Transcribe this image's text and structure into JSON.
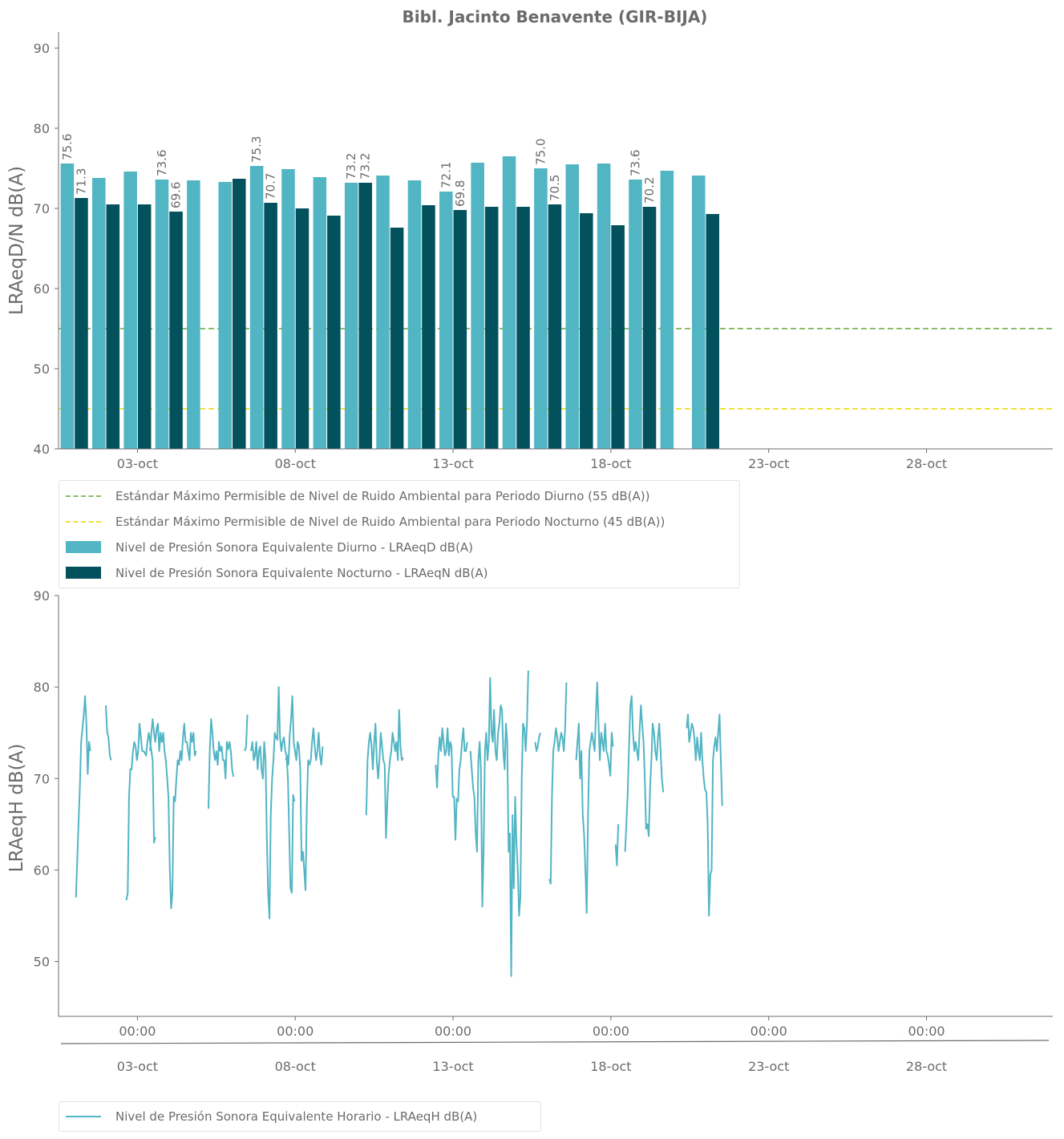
{
  "title": "Bibl. Jacinto Benavente (GIR-BIJA)",
  "colors": {
    "diurno": "#52b5c4",
    "nocturno": "#02515c",
    "limit_day": "#8cbd6b",
    "limit_night": "#f2e13a",
    "axis": "#6b6b6b"
  },
  "chart_data": [
    {
      "type": "bar",
      "ylabel": "LRAeqD/N dB(A)",
      "ylim": [
        40,
        92
      ],
      "yticks": [
        40,
        50,
        60,
        70,
        80,
        90
      ],
      "xlim_day": [
        0.5,
        32
      ],
      "xticks": [
        {
          "day": 3,
          "label": "03-oct"
        },
        {
          "day": 8,
          "label": "08-oct"
        },
        {
          "day": 13,
          "label": "13-oct"
        },
        {
          "day": 18,
          "label": "18-oct"
        },
        {
          "day": 23,
          "label": "23-oct"
        },
        {
          "day": 28,
          "label": "28-oct"
        }
      ],
      "days": [
        1,
        2,
        3,
        4,
        5,
        6,
        7,
        8,
        9,
        10,
        11,
        12,
        13,
        14,
        15,
        16,
        17,
        18,
        19,
        20,
        21
      ],
      "series": [
        {
          "name": "Nivel de Presión Sonora Equivalente Diurno - LRAeqD dB(A)",
          "values": [
            75.6,
            73.8,
            74.6,
            73.6,
            73.5,
            73.3,
            75.3,
            74.9,
            73.9,
            73.2,
            74.1,
            73.5,
            72.1,
            75.7,
            76.5,
            75.0,
            75.5,
            75.6,
            73.6,
            74.7,
            74.1
          ]
        },
        {
          "name": "Nivel de Presión Sonora Equivalente Nocturno - LRAeqN dB(A)",
          "values": [
            71.3,
            70.5,
            70.5,
            69.6,
            null,
            73.7,
            70.7,
            70.0,
            69.1,
            73.2,
            67.6,
            70.4,
            69.8,
            70.2,
            70.2,
            70.5,
            69.4,
            67.9,
            70.2,
            null,
            69.3
          ]
        }
      ],
      "labeled_days": [
        1,
        4,
        7,
        10,
        13,
        16,
        19
      ],
      "reference_lines": [
        {
          "name": "Estándar Máximo Permisible de Nivel de Ruido Ambiental para Periodo Diurno (55 dB(A))",
          "value": 55
        },
        {
          "name": "Estándar Máximo Permisible de Nivel de Ruido Ambiental para Periodo Nocturno (45 dB(A))",
          "value": 45
        }
      ]
    },
    {
      "type": "line",
      "ylabel": "LRAeqH dB(A)",
      "ylim": [
        44,
        90
      ],
      "yticks": [
        50,
        60,
        70,
        80,
        90
      ],
      "xticks_time": [
        "00:00",
        "00:00",
        "00:00",
        "00:00",
        "00:00",
        "00:00"
      ],
      "xticks_date": [
        "03-oct",
        "08-oct",
        "13-oct",
        "18-oct",
        "23-oct",
        "28-oct"
      ],
      "series": [
        {
          "name": "Nivel de Presión Sonora Equivalente Horario - LRAeqH dB(A)",
          "segments": [
            {
              "start_day": 1.05,
              "values": [
                57,
                61,
                65,
                69,
                74,
                75.5,
                77,
                79,
                76,
                70.5,
                74,
                73
              ]
            },
            {
              "start_day": 2.0,
              "values": [
                78,
                75,
                74.5,
                72.5,
                72
              ]
            },
            {
              "start_day": 2.65,
              "values": [
                56.7,
                57.5,
                68,
                71,
                71,
                73,
                74,
                73.5,
                72,
                73,
                76,
                74.5,
                73,
                73,
                72.8,
                72.5,
                74,
                75,
                74,
                73,
                72,
                63,
                63.6
              ]
            },
            {
              "start_day": 3.4,
              "values": [
                73,
                75,
                76.5,
                75,
                74,
                75.5,
                76,
                73,
                75,
                74,
                75,
                73,
                72,
                70,
                68,
                60,
                55.8,
                57.5,
                68,
                67.5,
                70,
                72,
                71.5,
                73,
                72,
                74.5,
                76,
                74,
                74,
                73,
                72,
                75,
                74,
                75,
                72.5,
                73
              ]
            },
            {
              "start_day": 5.25,
              "values": [
                66.7,
                73,
                76.5,
                75,
                73,
                72,
                73,
                71.5,
                74,
                73,
                73.5,
                72,
                72,
                70,
                74,
                73.2,
                74,
                73,
                71,
                70.2
              ]
            },
            {
              "start_day": 6.4,
              "values": [
                73,
                73.5,
                77
              ]
            },
            {
              "start_day": 6.6,
              "values": [
                73,
                74,
                72,
                72.5,
                74,
                71,
                73,
                73.5,
                71,
                70,
                74,
                72,
                63.5,
                57.5,
                54.7,
                66,
                70,
                72,
                75,
                74.5,
                74.2,
                80,
                74.5,
                73,
                74,
                74.5,
                73,
                72.5,
                70,
                64,
                58,
                57.5,
                68.2,
                67.5
              ]
            },
            {
              "start_day": 7.7,
              "values": [
                72,
                72.5,
                71.5,
                74.7,
                76.5,
                79,
                74,
                73,
                72,
                74,
                73.5,
                71,
                61,
                62,
                60,
                57.8,
                67,
                72,
                71.5,
                72,
                74,
                75.5,
                73.5,
                72,
                73,
                75,
                72.5,
                71.5,
                73.5
              ]
            },
            {
              "start_day": 10.25,
              "values": [
                66,
                72,
                74,
                75,
                73.5,
                71,
                74,
                76,
                72,
                70,
                72,
                75,
                73.5,
                72,
                71.5,
                63.5,
                67.5,
                70.5,
                72,
                73,
                75,
                74,
                73,
                74,
                72,
                77.5,
                73.5,
                72,
                72.3
              ]
            },
            {
              "start_day": 12.45,
              "values": [
                71.5,
                69,
                72.5,
                74.5,
                73,
                75.5,
                74,
                72.5,
                73,
                75.5,
                72.5,
                74,
                73.5,
                68,
                68,
                63.3,
                67.8,
                67.5,
                71,
                72,
                74,
                75.5,
                73,
                73,
                74
              ]
            },
            {
              "start_day": 13.55,
              "values": [
                73,
                71,
                69,
                68,
                64,
                62,
                72,
                74,
                71,
                56,
                62,
                73,
                75,
                72,
                74,
                81,
                75,
                74,
                77.5,
                73,
                72,
                75,
                76,
                78,
                77.5,
                73,
                71,
                76,
                74,
                62,
                64,
                48.4,
                66,
                58,
                68,
                63,
                60,
                55,
                57,
                70,
                76,
                75.5,
                73,
                76,
                81.8
              ]
            },
            {
              "start_day": 15.6,
              "values": [
                74,
                73,
                73.5,
                74.5,
                75
              ]
            },
            {
              "start_day": 16.05,
              "values": [
                59,
                58.5,
                68,
                73,
                74,
                75.5,
                74.5,
                73,
                74,
                75,
                74.5,
                73,
                75.5,
                80.5
              ]
            },
            {
              "start_day": 16.9,
              "values": [
                72,
                74,
                76,
                70,
                73,
                66,
                64,
                60,
                55.3,
                65.5,
                73,
                74,
                75,
                74,
                73,
                77,
                80.5,
                76,
                72,
                75,
                74,
                73,
                76,
                73,
                72.5,
                71.5,
                70.3,
                75,
                73.5
              ]
            },
            {
              "start_day": 18.15,
              "values": [
                62.8,
                60.5,
                65
              ]
            },
            {
              "start_day": 18.45,
              "values": [
                62,
                65,
                68.5,
                73.5,
                78,
                79,
                75,
                73,
                74,
                73,
                72,
                75,
                78,
                76,
                74,
                70,
                64.5,
                65,
                63.7,
                69,
                72,
                76,
                75,
                73,
                72,
                74.5,
                76,
                73,
                70,
                68.5
              ]
            },
            {
              "start_day": 20.4,
              "values": [
                75.5,
                77,
                74,
                75,
                76,
                75.5,
                74.3,
                72,
                74.5,
                73,
                72,
                75,
                72,
                70,
                68.8,
                68.5,
                65,
                55,
                59.5,
                60,
                72,
                73.5,
                74.5,
                73,
                75,
                77,
                72,
                67
              ]
            }
          ]
        }
      ]
    }
  ]
}
